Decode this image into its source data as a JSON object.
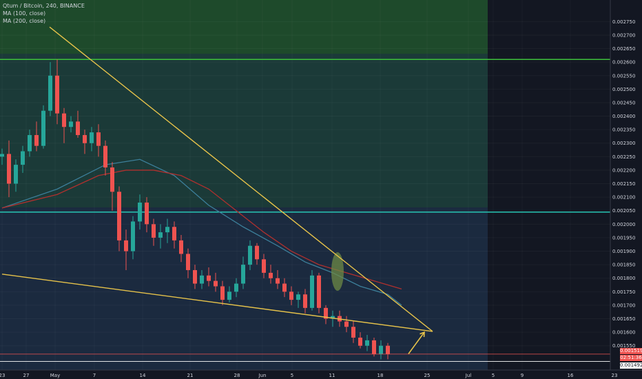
{
  "legend": {
    "symbol_line": "Qtum / Bitcoin, 240, BINANCE",
    "ma1": "MA (100, close)",
    "ma2": "MA (200, close)"
  },
  "price_labels": {
    "current": "0.001519",
    "countdown": "02:51:36",
    "low": "0.001492"
  },
  "colors": {
    "background": "#1b2a3f",
    "future_bg": "#131722",
    "green_zone": "#1e4a2b",
    "up": "#26a69a",
    "down": "#ef5350",
    "ma100": "#3c7f9a",
    "ma200": "#b0302e",
    "trendline": "#e6c24a",
    "resistance": "#3ec13c",
    "support": "#27c4b3"
  },
  "chart_data": {
    "type": "candlestick",
    "title": "Qtum / Bitcoin, 240, BINANCE",
    "y_ticks": [
      "0.002750",
      "0.002700",
      "0.002650",
      "0.002600",
      "0.002550",
      "0.002500",
      "0.002450",
      "0.002400",
      "0.002350",
      "0.002300",
      "0.002250",
      "0.002200",
      "0.002150",
      "0.002100",
      "0.002050",
      "0.002000",
      "0.001950",
      "0.001900",
      "0.001850",
      "0.001800",
      "0.001750",
      "0.001700",
      "0.001650",
      "0.001600",
      "0.001550"
    ],
    "x_ticks": [
      "23",
      "27",
      "May",
      "7",
      "14",
      "21",
      "28",
      "Jun",
      "5",
      "11",
      "18",
      "25",
      "Jul",
      "5",
      "9",
      "16",
      "23"
    ],
    "ylim": [
      0.00146,
      0.00283
    ],
    "series": [
      {
        "name": "MA (100, close)",
        "points": [
          [
            0,
            0.00206
          ],
          [
            8,
            0.00213
          ],
          [
            15,
            0.00222
          ],
          [
            20,
            0.00224
          ],
          [
            25,
            0.00218
          ],
          [
            30,
            0.00207
          ],
          [
            35,
            0.00199
          ],
          [
            40,
            0.00192
          ],
          [
            44,
            0.00186
          ],
          [
            48,
            0.00182
          ],
          [
            52,
            0.00177
          ],
          [
            56,
            0.00174
          ],
          [
            58,
            0.0017
          ]
        ]
      },
      {
        "name": "MA (200, close)",
        "points": [
          [
            0,
            0.00206
          ],
          [
            8,
            0.00211
          ],
          [
            14,
            0.00218
          ],
          [
            18,
            0.0022
          ],
          [
            22,
            0.0022
          ],
          [
            26,
            0.00218
          ],
          [
            30,
            0.00213
          ],
          [
            34,
            0.00205
          ],
          [
            38,
            0.00197
          ],
          [
            42,
            0.0019
          ],
          [
            46,
            0.00185
          ],
          [
            50,
            0.00182
          ],
          [
            54,
            0.00179
          ],
          [
            58,
            0.00176
          ]
        ]
      }
    ],
    "levels": [
      {
        "kind": "resistance",
        "price": 0.00261
      },
      {
        "kind": "support",
        "price": 0.002045
      },
      {
        "kind": "current",
        "price": 0.001519
      },
      {
        "kind": "low",
        "price": 0.001492
      }
    ],
    "trendlines": [
      {
        "kind": "upper",
        "from": [
          6.9,
          0.00273
        ],
        "to": [
          62.5,
          0.001603
        ]
      },
      {
        "kind": "lower",
        "from": [
          0,
          0.001815
        ],
        "to": [
          62.5,
          0.001603
        ]
      },
      {
        "kind": "projection-arrow",
        "from": [
          59,
          0.00152
        ],
        "to": [
          61.3,
          0.0016
        ]
      }
    ],
    "candles": [
      [
        0.00225,
        0.00228,
        0.00222,
        0.00226
      ],
      [
        0.00226,
        0.00231,
        0.0021,
        0.00215
      ],
      [
        0.00215,
        0.00224,
        0.00212,
        0.00222
      ],
      [
        0.00222,
        0.00229,
        0.00219,
        0.00227
      ],
      [
        0.00227,
        0.00235,
        0.00225,
        0.00233
      ],
      [
        0.00233,
        0.00238,
        0.00227,
        0.00229
      ],
      [
        0.00229,
        0.00244,
        0.00228,
        0.00242
      ],
      [
        0.00242,
        0.0026,
        0.0024,
        0.00255
      ],
      [
        0.00255,
        0.00261,
        0.00237,
        0.00241
      ],
      [
        0.00241,
        0.00243,
        0.0023,
        0.00236
      ],
      [
        0.00236,
        0.0024,
        0.00234,
        0.00238
      ],
      [
        0.00238,
        0.00242,
        0.00232,
        0.00233
      ],
      [
        0.00233,
        0.00235,
        0.00226,
        0.0023
      ],
      [
        0.0023,
        0.00236,
        0.00227,
        0.00234
      ],
      [
        0.00234,
        0.00237,
        0.00225,
        0.00229
      ],
      [
        0.00229,
        0.00231,
        0.00218,
        0.00221
      ],
      [
        0.00221,
        0.00223,
        0.00205,
        0.00212
      ],
      [
        0.00212,
        0.00214,
        0.0019,
        0.00194
      ],
      [
        0.00194,
        0.00198,
        0.00183,
        0.0019
      ],
      [
        0.0019,
        0.00203,
        0.00187,
        0.00201
      ],
      [
        0.00201,
        0.00211,
        0.00198,
        0.00208
      ],
      [
        0.00208,
        0.0021,
        0.00197,
        0.002
      ],
      [
        0.002,
        0.00202,
        0.00192,
        0.00195
      ],
      [
        0.00195,
        0.002,
        0.00191,
        0.00197
      ],
      [
        0.00197,
        0.00202,
        0.00193,
        0.00199
      ],
      [
        0.00199,
        0.00201,
        0.00191,
        0.00194
      ],
      [
        0.00194,
        0.00196,
        0.00186,
        0.00189
      ],
      [
        0.00189,
        0.00191,
        0.0018,
        0.00183
      ],
      [
        0.00183,
        0.00185,
        0.00176,
        0.00178
      ],
      [
        0.00178,
        0.00183,
        0.00176,
        0.00181
      ],
      [
        0.00181,
        0.00184,
        0.00177,
        0.00179
      ],
      [
        0.00179,
        0.00182,
        0.00175,
        0.00177
      ],
      [
        0.00177,
        0.00179,
        0.0017,
        0.00172
      ],
      [
        0.00172,
        0.00177,
        0.00171,
        0.00175
      ],
      [
        0.00175,
        0.0018,
        0.00173,
        0.00178
      ],
      [
        0.00178,
        0.00188,
        0.00176,
        0.00185
      ],
      [
        0.00185,
        0.00194,
        0.00183,
        0.00192
      ],
      [
        0.00192,
        0.00193,
        0.00185,
        0.00187
      ],
      [
        0.00187,
        0.00189,
        0.0018,
        0.00182
      ],
      [
        0.00182,
        0.00185,
        0.00178,
        0.0018
      ],
      [
        0.0018,
        0.00183,
        0.00176,
        0.00178
      ],
      [
        0.00178,
        0.0018,
        0.00173,
        0.00175
      ],
      [
        0.00175,
        0.00177,
        0.0017,
        0.00172
      ],
      [
        0.00172,
        0.00175,
        0.00169,
        0.00174
      ],
      [
        0.00174,
        0.00176,
        0.00167,
        0.00169
      ],
      [
        0.00169,
        0.00183,
        0.00168,
        0.00181
      ],
      [
        0.00181,
        0.00182,
        0.00167,
        0.00169
      ],
      [
        0.00169,
        0.0017,
        0.00163,
        0.00165
      ],
      [
        0.00165,
        0.00168,
        0.00162,
        0.00166
      ],
      [
        0.00166,
        0.00168,
        0.00162,
        0.00164
      ],
      [
        0.00164,
        0.00166,
        0.0016,
        0.00162
      ],
      [
        0.00162,
        0.00164,
        0.00156,
        0.00158
      ],
      [
        0.00158,
        0.0016,
        0.00154,
        0.00155
      ],
      [
        0.00155,
        0.00159,
        0.00153,
        0.00157
      ],
      [
        0.00157,
        0.00158,
        0.00151,
        0.00152
      ],
      [
        0.00152,
        0.00157,
        0.0015,
        0.00155
      ],
      [
        0.00155,
        0.00156,
        0.0015,
        0.00152
      ]
    ]
  }
}
